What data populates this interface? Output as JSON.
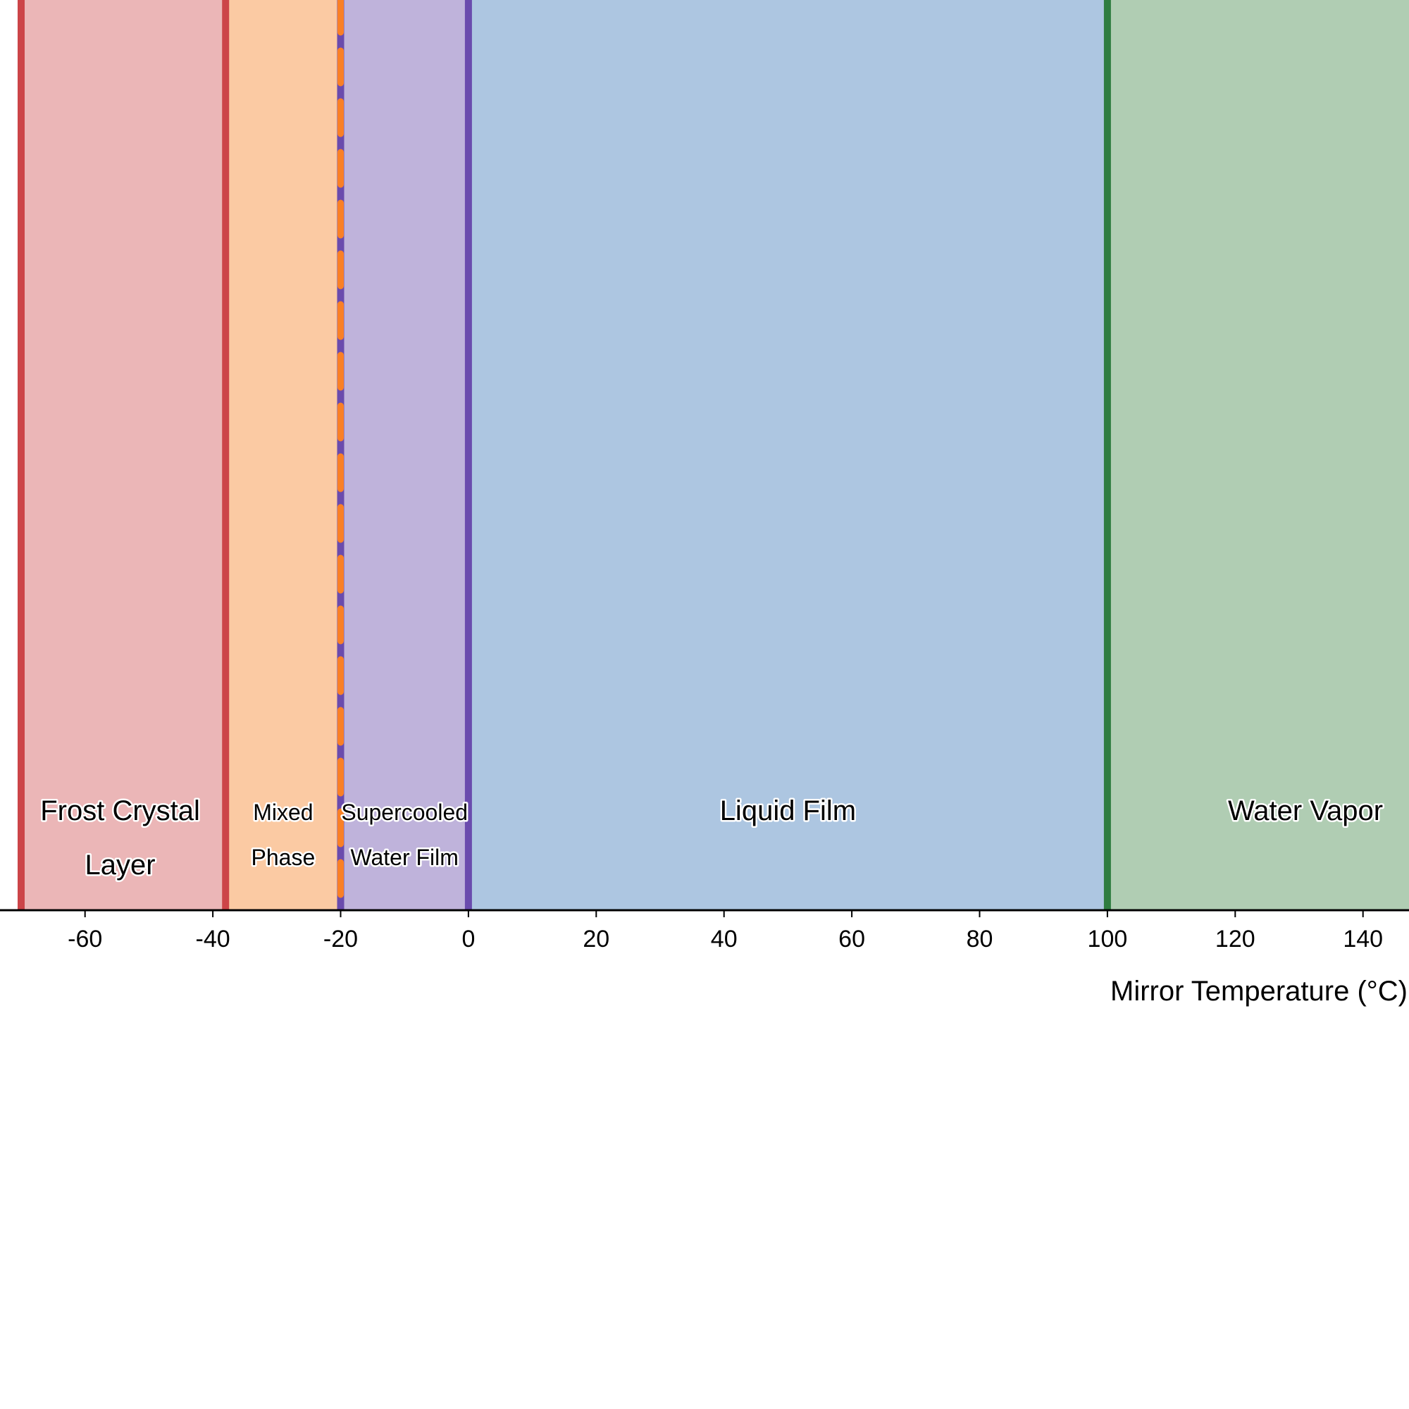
{
  "chart_data": {
    "type": "area",
    "xlabel": "Mirror Temperature (°C)",
    "ylabel": "",
    "title": "",
    "xlim": [
      -72,
      148
    ],
    "x_ticks": [
      -60,
      -40,
      -20,
      0,
      20,
      40,
      60,
      80,
      100,
      120,
      140
    ],
    "x_tick_labels": [
      "-60",
      "-40",
      "-20",
      "0",
      "20",
      "40",
      "60",
      "80",
      "100",
      "120",
      "140"
    ],
    "regions": [
      {
        "name": "Frost Crystal Layer",
        "label_lines": [
          "Frost Crystal",
          "Layer"
        ],
        "x_start": -70,
        "x_end": -38,
        "color": "#ebb6b7",
        "label_x": -54.5,
        "label_size": "large"
      },
      {
        "name": "Mixed Phase",
        "label_lines": [
          "Mixed",
          "Phase"
        ],
        "x_start": -38,
        "x_end": -20,
        "color": "#fbcaa3",
        "label_x": -29,
        "label_size": "small"
      },
      {
        "name": "Supercooled Water Film",
        "label_lines": [
          "Supercooled",
          "Water Film"
        ],
        "x_start": -20,
        "x_end": 0,
        "color": "#bfb3db",
        "label_x": -10,
        "label_size": "small"
      },
      {
        "name": "Liquid Film",
        "label_lines": [
          "Liquid Film"
        ],
        "x_start": 0,
        "x_end": 100,
        "color": "#adc6e1",
        "label_x": 50,
        "label_size": "large"
      },
      {
        "name": "Water Vapor",
        "label_lines": [
          "Water Vapor"
        ],
        "x_start": 100,
        "x_end": 148,
        "color": "#b0cdb3",
        "label_x": 131,
        "label_size": "large"
      }
    ],
    "boundaries": [
      {
        "x": -70,
        "color": "#cc4448",
        "style": "solid"
      },
      {
        "x": -38,
        "color": "#cc4448",
        "style": "solid"
      },
      {
        "x": -20,
        "color": "#6a4bad",
        "style": "solid"
      },
      {
        "x": -20,
        "color": "#f98026",
        "style": "dashed"
      },
      {
        "x": 0,
        "color": "#6a4bad",
        "style": "solid"
      },
      {
        "x": 100,
        "color": "#2f7d40",
        "style": "solid"
      }
    ]
  }
}
